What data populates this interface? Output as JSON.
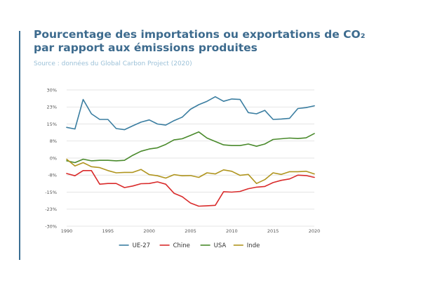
{
  "header": {
    "title_line1": "Pourcentage des importations ou exportations de CO₂",
    "title_line2": "par rapport aux émissions produites",
    "source": "Source : données du Global Carbon Project (2020)"
  },
  "colors": {
    "title": "#3d6b8e",
    "source": "#9cc1d8",
    "accent_rule": "#3a6e93",
    "grid": "#dddddd"
  },
  "chart_data": {
    "type": "line",
    "title": "Pourcentage des importations ou exportations de CO₂ par rapport aux émissions produites",
    "subtitle": "Source : données du Global Carbon Project (2020)",
    "xlabel": "",
    "ylabel": "",
    "xlim": [
      1990,
      2020
    ],
    "ylim": [
      -30,
      30
    ],
    "x_ticks": [
      1990,
      1995,
      2000,
      2005,
      2010,
      2015,
      2020
    ],
    "y_ticks": [
      {
        "value": 30,
        "label": "30%"
      },
      {
        "value": 22.5,
        "label": "23%"
      },
      {
        "value": 15,
        "label": "15%"
      },
      {
        "value": 7.5,
        "label": "8%"
      },
      {
        "value": 0,
        "label": "0%"
      },
      {
        "value": -7.5,
        "label": "-8%"
      },
      {
        "value": -15,
        "label": "-15%"
      },
      {
        "value": -22.5,
        "label": "-23%"
      },
      {
        "value": -30,
        "label": "-30%"
      }
    ],
    "grid": true,
    "legend_position": "bottom-center",
    "x": [
      1990,
      1991,
      1992,
      1993,
      1994,
      1995,
      1996,
      1997,
      1998,
      1999,
      2000,
      2001,
      2002,
      2003,
      2004,
      2005,
      2006,
      2007,
      2008,
      2009,
      2010,
      2011,
      2012,
      2013,
      2014,
      2015,
      2016,
      2017,
      2018,
      2019,
      2020
    ],
    "series": [
      {
        "name": "UE-27",
        "color": "#3b7ea1",
        "values": [
          13.5,
          12.8,
          25.8,
          19.5,
          17,
          17,
          13,
          12.5,
          14.2,
          15.8,
          16.8,
          15,
          14.5,
          16.5,
          18,
          21.5,
          23.5,
          25,
          27,
          25,
          26,
          25.8,
          20,
          19.5,
          21,
          17,
          17.2,
          17.5,
          21.8,
          22.2,
          23
        ]
      },
      {
        "name": "Chine",
        "color": "#d92b2b",
        "values": [
          -6.8,
          -7.8,
          -5.5,
          -5.5,
          -11.5,
          -11.2,
          -11.2,
          -13,
          -12.3,
          -11.3,
          -11.2,
          -10.5,
          -11.5,
          -15.5,
          -17,
          -19.8,
          -21.2,
          -21,
          -20.8,
          -14.8,
          -15,
          -14.7,
          -13.5,
          -12.8,
          -12.5,
          -10.8,
          -9.8,
          -9.2,
          -7.5,
          -7.7,
          -8.5
        ]
      },
      {
        "name": "USA",
        "color": "#4a8a2c",
        "values": [
          -1.2,
          -2,
          -0.5,
          -1.2,
          -1,
          -1,
          -1.2,
          -1,
          1.2,
          3,
          4,
          4.5,
          6,
          8,
          8.5,
          10,
          11.5,
          8.8,
          7.3,
          5.8,
          5.5,
          5.5,
          6.2,
          5.2,
          6.2,
          8.2,
          8.5,
          8.8,
          8.6,
          8.9,
          10.8
        ]
      },
      {
        "name": "Inde",
        "color": "#b0951f",
        "values": [
          -0.5,
          -3.5,
          -2,
          -3.8,
          -4.2,
          -5.5,
          -6.5,
          -6.3,
          -6.3,
          -5,
          -7.3,
          -7.8,
          -8.8,
          -7.3,
          -7.8,
          -7.7,
          -8.5,
          -6.5,
          -7,
          -5.2,
          -5.8,
          -7.6,
          -7.2,
          -11.2,
          -9.5,
          -6.5,
          -7.2,
          -6,
          -6,
          -5.8,
          -7
        ]
      }
    ]
  }
}
